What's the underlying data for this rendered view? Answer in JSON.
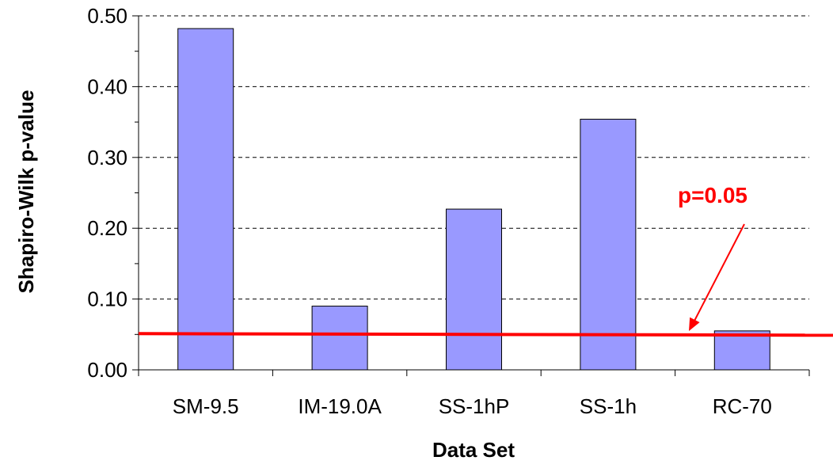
{
  "chart_data": {
    "type": "bar",
    "categories": [
      "SM-9.5",
      "IM-19.0A",
      "SS-1hP",
      "SS-1h",
      "RC-70"
    ],
    "values": [
      0.482,
      0.09,
      0.227,
      0.354,
      0.055
    ],
    "title": "",
    "xlabel": "Data Set",
    "ylabel": "Shapiro-Wilk p-value",
    "ylim": [
      0,
      0.5
    ],
    "yticks": [
      "0.00",
      "0.10",
      "0.20",
      "0.30",
      "0.40",
      "0.50"
    ],
    "grid": "horizontal dashed",
    "bar_color": "#9999ff",
    "reference_line": {
      "value": 0.05,
      "label": "p=0.05",
      "color": "#ff0000"
    }
  }
}
